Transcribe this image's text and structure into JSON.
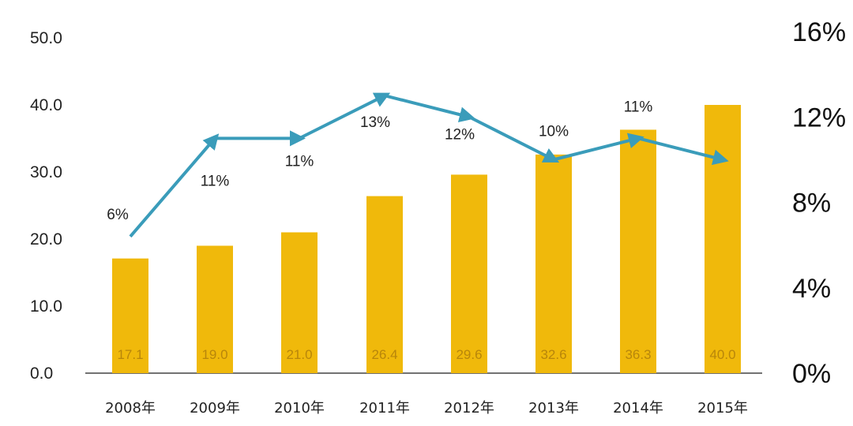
{
  "chart_data": {
    "type": "bar",
    "title": "",
    "xlabel": "",
    "ylabel": "",
    "categories": [
      "2008年",
      "2009年",
      "2010年",
      "2011年",
      "2012年",
      "2013年",
      "2014年",
      "2015年"
    ],
    "series": [
      {
        "type": "bar",
        "axis": "left",
        "values": [
          17.1,
          19.0,
          21.0,
          26.4,
          29.6,
          32.6,
          36.3,
          40.0
        ],
        "value_labels": [
          "17.1",
          "19.0",
          "21.0",
          "26.4",
          "29.6",
          "32.6",
          "36.3",
          "40.0"
        ],
        "color": "#f0b90b"
      },
      {
        "type": "line",
        "axis": "right",
        "values": [
          6.4,
          11,
          11,
          13,
          12,
          10,
          11,
          10
        ],
        "value_labels": [
          "6%",
          "11%",
          "11%",
          "13%",
          "12%",
          "10%",
          "11%",
          ""
        ],
        "color": "#3a9cba"
      }
    ],
    "ylim": [
      0,
      50
    ],
    "y_ticks": [
      "0.0",
      "10.0",
      "20.0",
      "30.0",
      "40.0",
      "50.0"
    ],
    "y2lim": [
      0,
      16
    ],
    "y2_ticks": [
      "0%",
      "4%",
      "8%",
      "12%",
      "16%"
    ],
    "grid": false
  }
}
